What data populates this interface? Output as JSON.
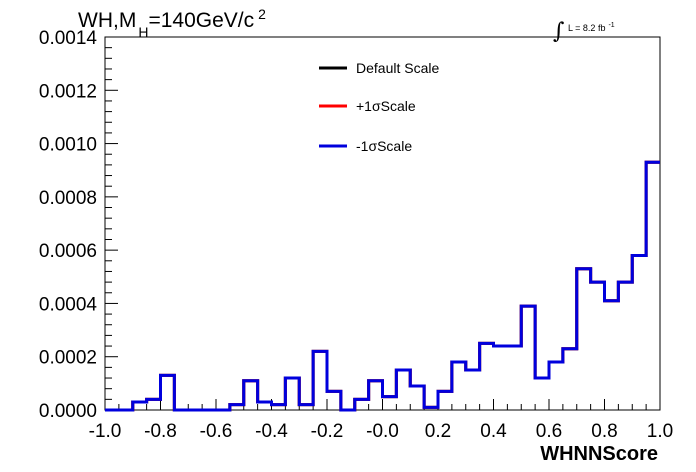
{
  "chart_data": {
    "type": "line",
    "title": "WH,M_H=140GeV/c^2",
    "title_parts": {
      "main": "WH,M",
      "subscript": "H",
      "rest": "=140GeV/c",
      "superscript": "2"
    },
    "lumi": {
      "label": "L = 8.2 fb",
      "superscript": "-1",
      "integral_symbol": "∫"
    },
    "xlabel": "WHNNScore",
    "ylabel": "",
    "xlim": [
      -1.0,
      1.0
    ],
    "ylim": [
      0.0,
      0.0014
    ],
    "xticks": [
      -1.0,
      -0.8,
      -0.6,
      -0.4,
      -0.2,
      0.0,
      0.2,
      0.4,
      0.6,
      0.8,
      1.0
    ],
    "xtick_labels": [
      "-1.0",
      "-0.8",
      "-0.6",
      "-0.4",
      "-0.2",
      "-0.0",
      "0.2",
      "0.4",
      "0.6",
      "0.8",
      "1.0"
    ],
    "yticks": [
      0.0,
      0.0002,
      0.0004,
      0.0006,
      0.0008,
      0.001,
      0.0012,
      0.0014
    ],
    "ytick_labels": [
      "0.0000",
      "0.0002",
      "0.0004",
      "0.0006",
      "0.0008",
      "0.0010",
      "0.0012",
      "0.0014"
    ],
    "bin_edges": [
      -1.0,
      -0.95,
      -0.9,
      -0.85,
      -0.8,
      -0.75,
      -0.7,
      -0.65,
      -0.6,
      -0.55,
      -0.5,
      -0.45,
      -0.4,
      -0.35,
      -0.3,
      -0.25,
      -0.2,
      -0.15,
      -0.1,
      -0.05,
      0.0,
      0.05,
      0.1,
      0.15,
      0.2,
      0.25,
      0.3,
      0.35,
      0.4,
      0.45,
      0.5,
      0.55,
      0.6,
      0.65,
      0.7,
      0.75,
      0.8,
      0.85,
      0.9,
      0.95,
      1.0
    ],
    "series": [
      {
        "name": "Default Scale",
        "color": "#000000",
        "values": [
          0.0,
          0.0,
          3e-05,
          4e-05,
          0.00013,
          0.0,
          0.0,
          0.0,
          0.0,
          2e-05,
          0.00011,
          3e-05,
          2e-05,
          0.00012,
          2e-05,
          0.00022,
          7e-05,
          0.0,
          4e-05,
          0.00011,
          5e-05,
          0.00015,
          9e-05,
          1e-05,
          7e-05,
          0.00018,
          0.00015,
          0.00025,
          0.00024,
          0.00024,
          0.00039,
          0.00012,
          0.00018,
          0.00023,
          0.00053,
          0.00048,
          0.00041,
          0.00048,
          0.00058,
          0.00093
        ]
      },
      {
        "name": "+1σScale",
        "color": "#ff0000",
        "values": [
          0.0,
          0.0,
          3e-05,
          4e-05,
          0.00013,
          0.0,
          0.0,
          0.0,
          0.0,
          2e-05,
          0.00011,
          3e-05,
          2e-05,
          0.00012,
          2e-05,
          0.00022,
          7e-05,
          0.0,
          4e-05,
          0.00011,
          5e-05,
          0.00015,
          9e-05,
          1e-05,
          7e-05,
          0.00018,
          0.00015,
          0.00025,
          0.00024,
          0.00024,
          0.00039,
          0.00012,
          0.00018,
          0.00023,
          0.00053,
          0.00048,
          0.00041,
          0.00048,
          0.00058,
          0.00093
        ]
      },
      {
        "name": "-1σScale",
        "color": "#0000dd",
        "values": [
          0.0,
          0.0,
          3e-05,
          4e-05,
          0.00013,
          0.0,
          0.0,
          0.0,
          0.0,
          2e-05,
          0.00011,
          3e-05,
          2e-05,
          0.00012,
          2e-05,
          0.00022,
          7e-05,
          0.0,
          4e-05,
          0.00011,
          5e-05,
          0.00015,
          9e-05,
          1e-05,
          7e-05,
          0.00018,
          0.00015,
          0.00025,
          0.00024,
          0.00024,
          0.00039,
          0.00012,
          0.00018,
          0.00023,
          0.00053,
          0.00048,
          0.00041,
          0.00048,
          0.00058,
          0.00093
        ]
      }
    ],
    "legend": {
      "position": "top-center"
    },
    "grid": false
  }
}
